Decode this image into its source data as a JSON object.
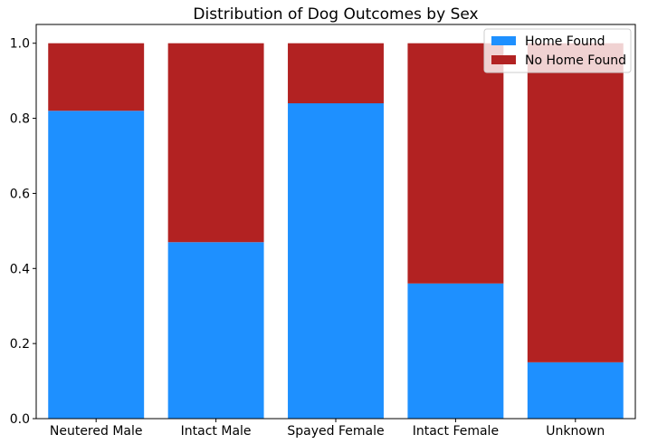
{
  "chart_data": {
    "type": "bar",
    "stacked": true,
    "title": "Distribution of Dog Outcomes by Sex",
    "xlabel": "",
    "ylabel": "",
    "categories": [
      "Neutered Male",
      "Intact Male",
      "Spayed Female",
      "Intact Female",
      "Unknown"
    ],
    "series": [
      {
        "name": "Home Found",
        "color": "#1e90ff",
        "values": [
          0.82,
          0.47,
          0.84,
          0.36,
          0.15
        ]
      },
      {
        "name": "No Home Found",
        "color": "#b22222",
        "values": [
          0.18,
          0.53,
          0.16,
          0.64,
          0.85
        ]
      }
    ],
    "ylim": [
      0,
      1.05
    ],
    "yticks": [
      "0.0",
      "0.2",
      "0.4",
      "0.6",
      "0.8",
      "1.0"
    ],
    "ytick_values": [
      0.0,
      0.2,
      0.4,
      0.6,
      0.8,
      1.0
    ],
    "grid": false,
    "legend_position": "top-right"
  }
}
